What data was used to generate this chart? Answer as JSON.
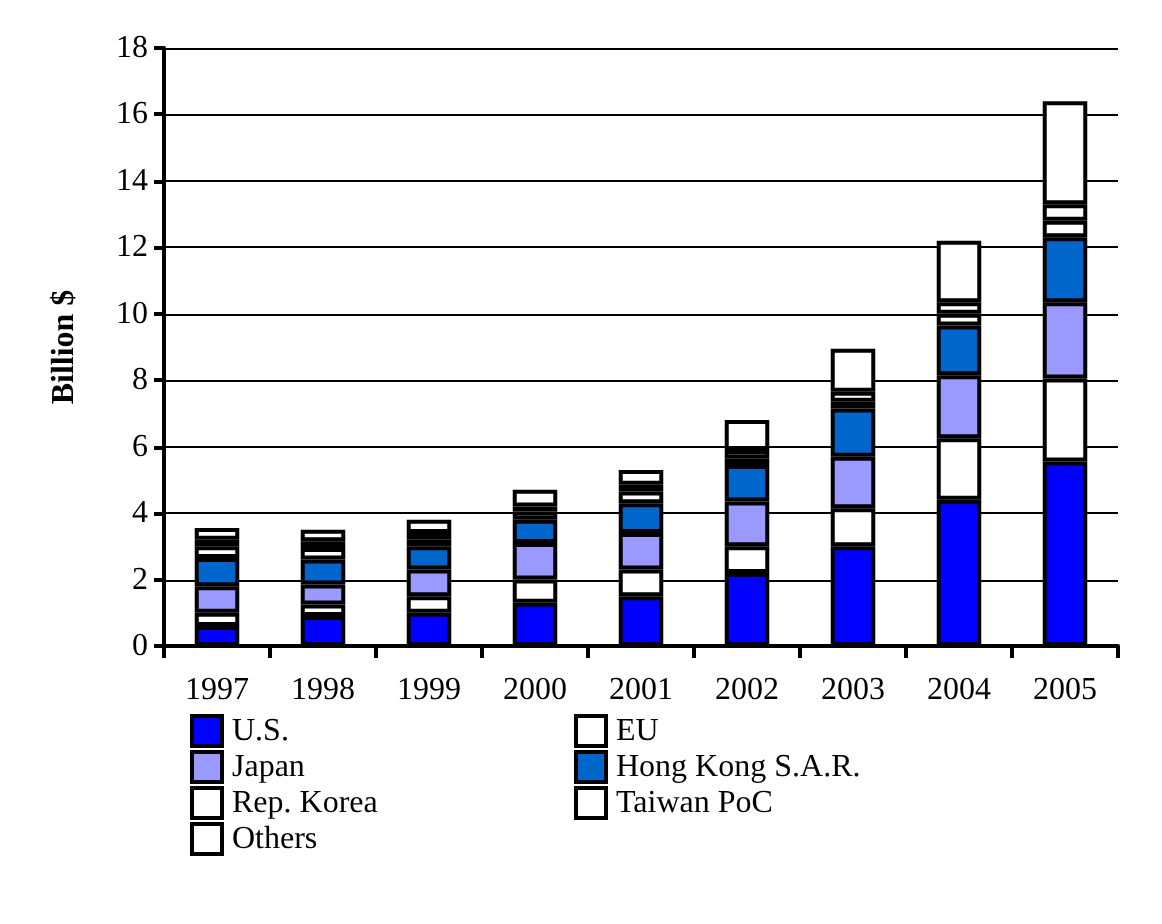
{
  "chart_data": {
    "type": "bar",
    "stacked": true,
    "ylabel": "Billion $",
    "categories": [
      "1997",
      "1998",
      "1999",
      "2000",
      "2001",
      "2002",
      "2003",
      "2004",
      "2005"
    ],
    "ylim": [
      0,
      18
    ],
    "yticks": [
      0,
      2,
      4,
      6,
      8,
      10,
      12,
      14,
      16,
      18
    ],
    "grid": "y",
    "legend": "bottom",
    "series": [
      {
        "name": "U.S.",
        "color": "#0000ff",
        "values": [
          0.6,
          0.9,
          1.0,
          1.3,
          1.5,
          2.2,
          3.0,
          4.4,
          5.55
        ]
      },
      {
        "name": "EU",
        "color": "#ffffff",
        "values": [
          0.4,
          0.35,
          0.5,
          0.7,
          0.8,
          0.8,
          1.15,
          1.85,
          2.5
        ]
      },
      {
        "name": "Japan",
        "color": "#9999ff",
        "values": [
          0.8,
          0.6,
          0.8,
          1.1,
          1.1,
          1.35,
          1.55,
          1.9,
          2.3
        ]
      },
      {
        "name": "Hong Kong S.A.R.",
        "color": "#0066cc",
        "values": [
          0.85,
          0.75,
          0.7,
          0.7,
          0.9,
          1.1,
          1.45,
          1.5,
          1.95
        ]
      },
      {
        "name": "Rep. Korea",
        "color": "#ffffff",
        "values": [
          0.35,
          0.35,
          0.2,
          0.25,
          0.35,
          0.2,
          0.2,
          0.35,
          0.5
        ]
      },
      {
        "name": "Taiwan PoC",
        "color": "#ffffff",
        "values": [
          0.2,
          0.2,
          0.2,
          0.15,
          0.2,
          0.25,
          0.3,
          0.35,
          0.5
        ]
      },
      {
        "name": "Others",
        "color": "#ffffff",
        "values": [
          0.35,
          0.35,
          0.4,
          0.5,
          0.45,
          0.9,
          1.3,
          1.85,
          3.1
        ]
      }
    ]
  }
}
